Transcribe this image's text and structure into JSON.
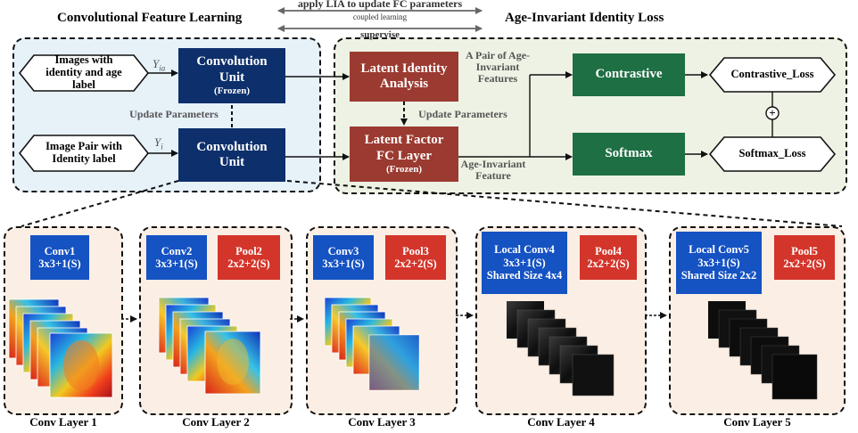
{
  "titles": {
    "left": "Convolutional Feature Learning",
    "right": "Age-Invariant Identity Loss"
  },
  "top_annotations": {
    "apply": "apply LIA to update FC parameters",
    "coupled": "coupled learning",
    "supervise": "supervise"
  },
  "inputs": {
    "top": "Images with identity and age label",
    "bottom": "Image Pair with Identity label",
    "y_top": "Y",
    "y_top_sub": "ia",
    "y_bottom": "Y",
    "y_bottom_sub": "i"
  },
  "boxes": {
    "conv_frozen_main": "Convolution Unit",
    "conv_frozen_tag": "(Frozen)",
    "conv_unit": "Convolution Unit",
    "update_params_left": "Update Parameters",
    "lia": "Latent Identity Analysis",
    "update_params_right": "Update Parameters",
    "lf_main": "Latent Factor FC Layer",
    "lf_tag": "(Frozen)",
    "pair_label": "A Pair of Age-Invariant Features",
    "ai_feature": "Age-Invariant Feature",
    "contrastive": "Contrastive",
    "softmax": "Softmax",
    "contrastive_loss": "Contrastive_Loss",
    "softmax_loss": "Softmax_Loss",
    "plus": "+"
  },
  "layers": [
    {
      "label": "Conv Layer 1",
      "conv": "Conv1 3x3+1(S)",
      "pool": ""
    },
    {
      "label": "Conv Layer 2",
      "conv": "Conv2 3x3+1(S)",
      "pool": "Pool2 2x2+2(S)"
    },
    {
      "label": "Conv Layer 3",
      "conv": "Conv3 3x3+1(S)",
      "pool": "Pool3 2x2+2(S)"
    },
    {
      "label": "Conv Layer 4",
      "conv": "Local Conv4 3x3+1(S) Shared Size 4x4",
      "pool": "Pool4 2x2+2(S)"
    },
    {
      "label": "Conv Layer 5",
      "conv": "Local Conv5 3x3+1(S) Shared Size 2x2",
      "pool": "Pool5 2x2+2(S)"
    }
  ],
  "colors": {
    "navy": "#0d2f6b",
    "brown": "#9b3a30",
    "green": "#1e6f44",
    "conv_blue": "#1552c2",
    "pool_red": "#d3352a",
    "left_panel_bg": "#e6f1f8",
    "right_panel_bg": "#eef2e4",
    "layer_bg": "#fbeee4"
  }
}
